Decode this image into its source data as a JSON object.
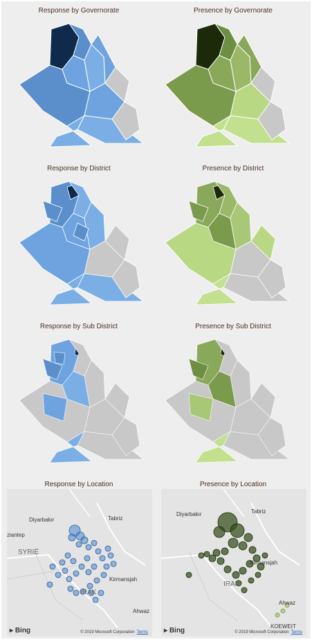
{
  "panels": {
    "p1": {
      "title": "Response by Governorate"
    },
    "p2": {
      "title": "Presence by Governorate"
    },
    "p3": {
      "title": "Response by District"
    },
    "p4": {
      "title": "Presence by District"
    },
    "p5": {
      "title": "Response by Sub District"
    },
    "p6": {
      "title": "Presence by Sub District"
    },
    "p7": {
      "title": "Response by Location"
    },
    "p8": {
      "title": "Presence by Location"
    }
  },
  "map_labels": {
    "diyarbakir": "Diyarbakır",
    "tabriz": "Tabriz",
    "gaziantep": "ziantep",
    "syria": "SYRIË",
    "kirmanshah": "Kirmansjah",
    "iraq": "IRAK",
    "ahwaz": "Ahwaz",
    "koeweit": "KOEWEIT",
    "bing": "Bing",
    "copyright": "© 2019 Microsoft Corporation",
    "terms": "Terms"
  },
  "colors": {
    "response_dark": "#0f2a4a",
    "response_light": "#7aaee4",
    "presence_dark": "#1c2a0a",
    "presence_light": "#c2e08e",
    "no_data": "#c8c8c8"
  }
}
